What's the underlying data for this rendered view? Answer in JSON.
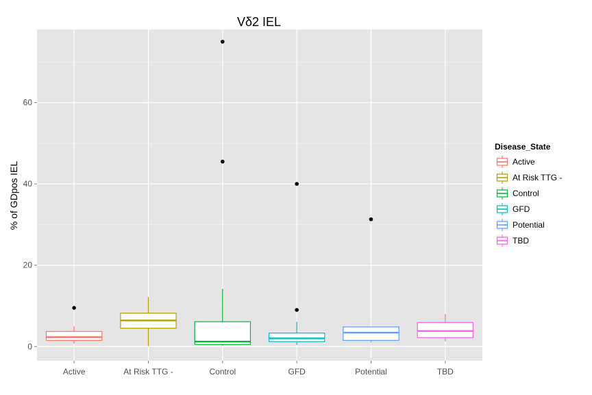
{
  "chart_data": {
    "type": "boxplot",
    "title": "Vδ2 IEL",
    "xlabel": "",
    "ylabel": "% of GDpos IEL",
    "ylim": [
      -3.5,
      78
    ],
    "yticks": [
      0,
      20,
      40,
      60
    ],
    "grid": true,
    "legend": {
      "title": "Disease_State",
      "placement": "right"
    },
    "categories": [
      "Active",
      "At Risk TTG -",
      "Control",
      "GFD",
      "Potential",
      "TBD"
    ],
    "series": [
      {
        "name": "Active",
        "color": "#F8766D",
        "whisker_low": 0.7,
        "q1": 1.5,
        "median": 2.3,
        "q3": 3.7,
        "whisker_high": 5.0,
        "outliers": [
          9.5
        ]
      },
      {
        "name": "At Risk TTG -",
        "color": "#B79F00",
        "whisker_low": 0.1,
        "q1": 4.5,
        "median": 6.4,
        "q3": 8.2,
        "whisker_high": 12.2,
        "outliers": []
      },
      {
        "name": "Control",
        "color": "#00BA38",
        "whisker_low": 0.2,
        "q1": 0.5,
        "median": 1.2,
        "q3": 6.1,
        "whisker_high": 14.2,
        "outliers": [
          45.5,
          75.0
        ]
      },
      {
        "name": "GFD",
        "color": "#00BFC4",
        "whisker_low": 0.4,
        "q1": 1.2,
        "median": 2.0,
        "q3": 3.3,
        "whisker_high": 6.1,
        "outliers": [
          9.0,
          40.0
        ]
      },
      {
        "name": "Potential",
        "color": "#619CFF",
        "whisker_low": 1.0,
        "q1": 1.5,
        "median": 3.4,
        "q3": 4.8,
        "whisker_high": 4.8,
        "outliers": [
          31.3
        ]
      },
      {
        "name": "TBD",
        "color": "#F564E3",
        "whisker_low": 1.3,
        "q1": 2.2,
        "median": 3.8,
        "q3": 5.9,
        "whisker_high": 8.0,
        "outliers": []
      }
    ]
  }
}
